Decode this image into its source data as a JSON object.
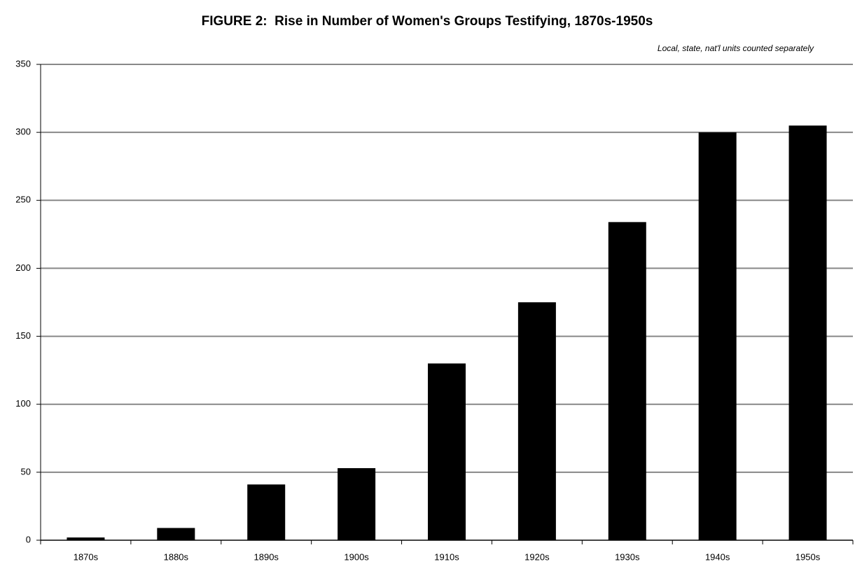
{
  "chart_data": {
    "type": "bar",
    "title": "FIGURE 2:  Rise in Number of Women's Groups Testifying, 1870s-1950s",
    "annotation": "Local, state, nat'l units counted separately",
    "categories": [
      "1870s",
      "1880s",
      "1890s",
      "1900s",
      "1910s",
      "1920s",
      "1930s",
      "1940s",
      "1950s"
    ],
    "values": [
      2,
      9,
      41,
      53,
      130,
      175,
      234,
      300,
      305
    ],
    "color": "#000000",
    "ylim": [
      0,
      350
    ],
    "yticks": [
      0,
      50,
      100,
      150,
      200,
      250,
      300,
      350
    ],
    "grid": true
  }
}
